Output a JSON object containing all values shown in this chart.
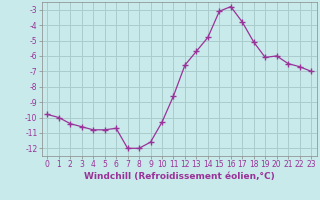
{
  "x": [
    0,
    1,
    2,
    3,
    4,
    5,
    6,
    7,
    8,
    9,
    10,
    11,
    12,
    13,
    14,
    15,
    16,
    17,
    18,
    19,
    20,
    21,
    22,
    23
  ],
  "y": [
    -9.8,
    -10.0,
    -10.4,
    -10.6,
    -10.8,
    -10.8,
    -10.7,
    -12.0,
    -12.0,
    -11.6,
    -10.3,
    -8.6,
    -6.6,
    -5.7,
    -4.8,
    -3.1,
    -2.8,
    -3.8,
    -5.1,
    -6.1,
    -6.0,
    -6.5,
    -6.7,
    -7.0
  ],
  "line_color": "#993399",
  "marker": "+",
  "marker_size": 4,
  "marker_lw": 1.0,
  "xlabel": "Windchill (Refroidissement éolien,°C)",
  "xlim": [
    -0.5,
    23.5
  ],
  "ylim": [
    -12.5,
    -2.5
  ],
  "yticks": [
    -12,
    -11,
    -10,
    -9,
    -8,
    -7,
    -6,
    -5,
    -4,
    -3
  ],
  "xticks": [
    0,
    1,
    2,
    3,
    4,
    5,
    6,
    7,
    8,
    9,
    10,
    11,
    12,
    13,
    14,
    15,
    16,
    17,
    18,
    19,
    20,
    21,
    22,
    23
  ],
  "bg_color": "#c8eaea",
  "grid_color": "#aacccc",
  "tick_label_color": "#993399",
  "axis_label_color": "#993399",
  "tick_fontsize": 5.5,
  "xlabel_fontsize": 6.5
}
